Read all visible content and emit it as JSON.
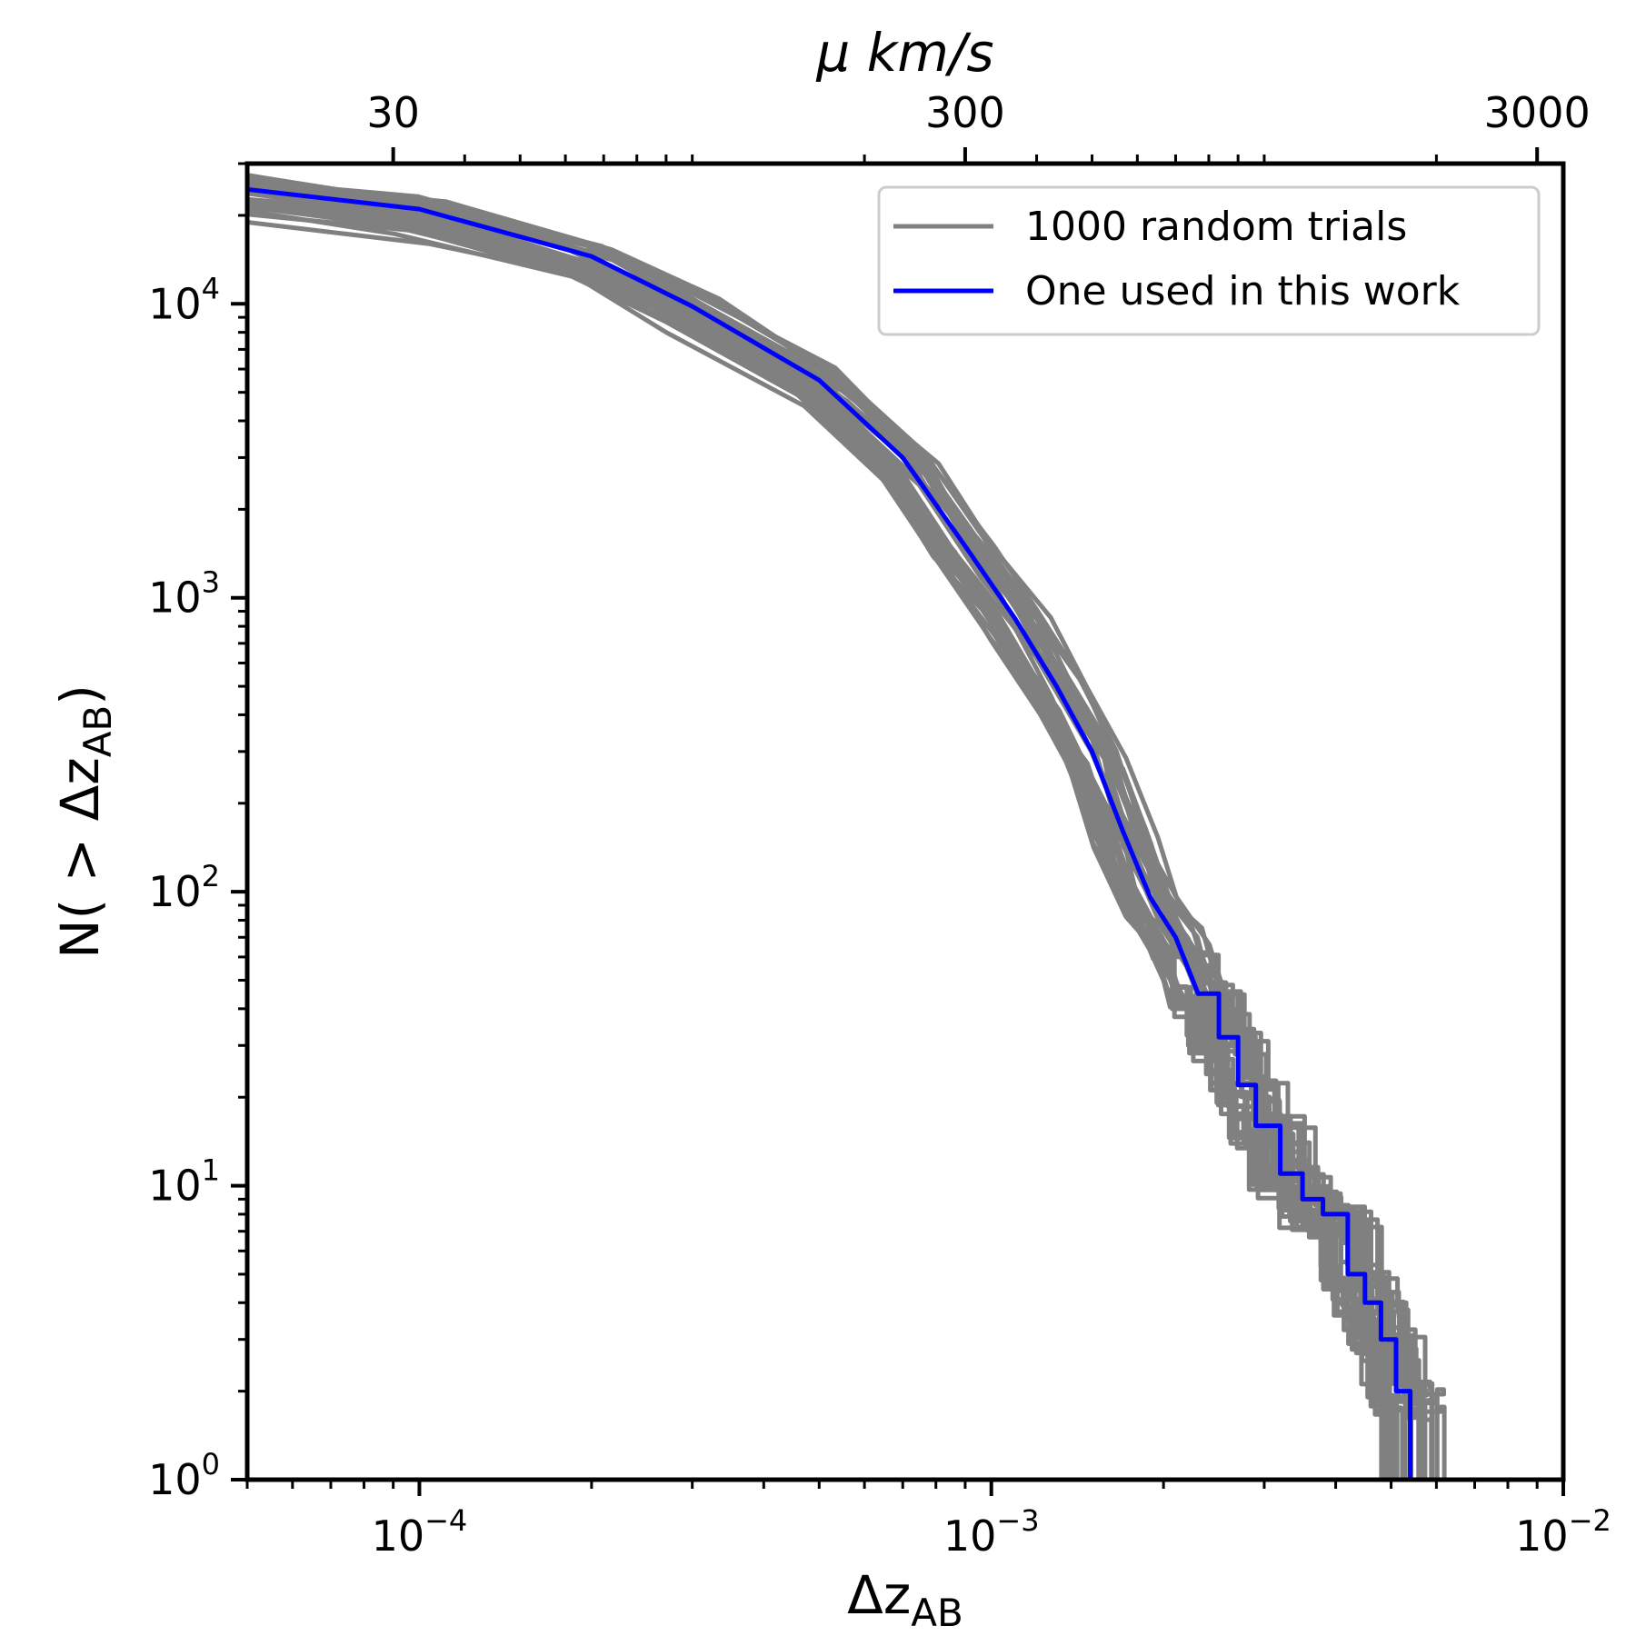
{
  "chart_data": {
    "type": "line",
    "xscale": "log",
    "yscale": "log",
    "xlim": [
      5e-05,
      0.01
    ],
    "ylim": [
      1,
      30000
    ],
    "xlabel": "Δz",
    "xlabel_sub": "AB",
    "ylabel_prefix": "N( > Δz",
    "ylabel_sub": "AB",
    "ylabel_suffix": ")",
    "top_axis": {
      "label": "μ km/s",
      "ticks": [
        {
          "x": 9e-05,
          "label": "30"
        },
        {
          "x": 0.0009,
          "label": "300"
        },
        {
          "x": 0.009,
          "label": "3000"
        }
      ]
    },
    "x_ticks": [
      {
        "x": 0.0001,
        "base": "10",
        "exp": "−4"
      },
      {
        "x": 0.001,
        "base": "10",
        "exp": "−3"
      },
      {
        "x": 0.01,
        "base": "10",
        "exp": "−2"
      }
    ],
    "y_ticks": [
      {
        "y": 1,
        "base": "10",
        "exp": "0"
      },
      {
        "y": 10,
        "base": "10",
        "exp": "1"
      },
      {
        "y": 100,
        "base": "10",
        "exp": "2"
      },
      {
        "y": 1000,
        "base": "10",
        "exp": "3"
      },
      {
        "y": 10000,
        "base": "10",
        "exp": "4"
      }
    ],
    "legend": {
      "placement": "top-right",
      "entries": [
        {
          "label": "1000 random trials",
          "color": "#808080"
        },
        {
          "label": "One used in this work",
          "color": "#0000ff"
        }
      ]
    },
    "grid": false,
    "series": [
      {
        "color": "#0000ff",
        "points": [
          [
            5e-05,
            24500
          ],
          [
            0.0001,
            21000
          ],
          [
            0.0002,
            14500
          ],
          [
            0.0003,
            9800
          ],
          [
            0.0005,
            5500
          ],
          [
            0.0007,
            3000
          ],
          [
            0.0009,
            1500
          ],
          [
            0.0011,
            850
          ],
          [
            0.0013,
            500
          ],
          [
            0.0015,
            300
          ],
          [
            0.0017,
            160
          ],
          [
            0.0019,
            95
          ],
          [
            0.0021,
            70
          ],
          [
            0.0023,
            45
          ],
          [
            0.0025,
            32
          ],
          [
            0.0027,
            22
          ],
          [
            0.0029,
            16
          ],
          [
            0.0032,
            11
          ],
          [
            0.0035,
            9
          ],
          [
            0.0038,
            8
          ],
          [
            0.0042,
            5
          ],
          [
            0.0045,
            4
          ],
          [
            0.0048,
            3
          ],
          [
            0.0051,
            2
          ],
          [
            0.0054,
            2
          ],
          [
            0.0054,
            1
          ]
        ]
      }
    ]
  }
}
